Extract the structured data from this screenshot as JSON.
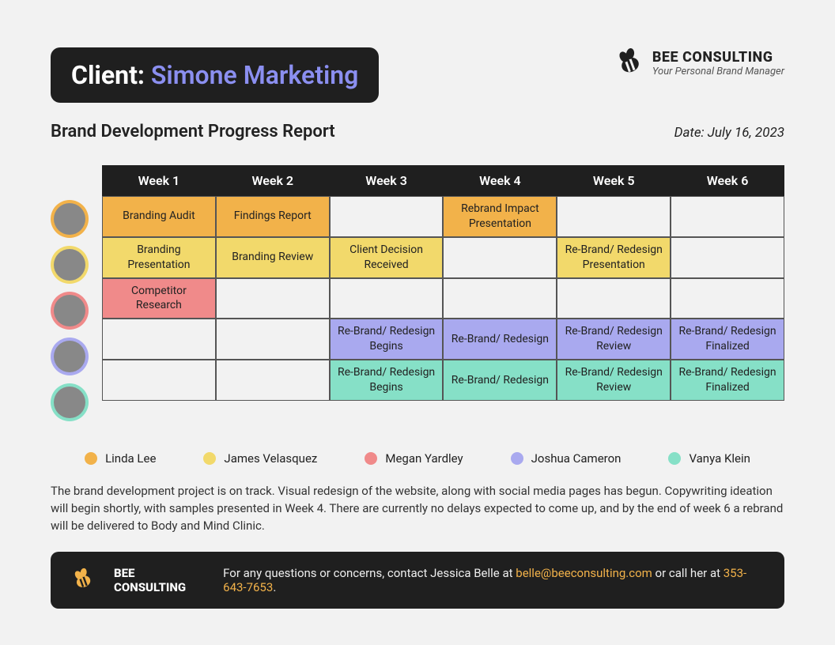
{
  "colors": {
    "orange": "#f2b24a",
    "yellow": "#f2d96b",
    "pink": "#f08a8a",
    "purple": "#a9a9ef",
    "teal": "#86e0c7",
    "header_bg": "#1f1f1f"
  },
  "header": {
    "client_label": "Client:",
    "client_name": "Simone Marketing",
    "brand_name": "BEE CONSULTING",
    "brand_tag": "Your Personal Brand Manager"
  },
  "subhead": {
    "title": "Brand Development Progress Report",
    "date": "Date: July 16, 2023"
  },
  "weeks": [
    "Week 1",
    "Week 2",
    "Week 3",
    "Week 4",
    "Week 5",
    "Week 6"
  ],
  "rows": [
    {
      "color": "orange",
      "cells": [
        "Branding Audit",
        "Findings Report",
        "",
        "Rebrand Impact Presentation",
        "",
        ""
      ]
    },
    {
      "color": "yellow",
      "cells": [
        "Branding Presentation",
        "Branding Review",
        "Client Decision Received",
        "",
        "Re-Brand/ Redesign Presentation",
        ""
      ]
    },
    {
      "color": "pink",
      "cells": [
        "Competitor Research",
        "",
        "",
        "",
        "",
        ""
      ]
    },
    {
      "color": "purple",
      "cells": [
        "",
        "",
        "Re-Brand/ Redesign Begins",
        "Re-Brand/ Redesign",
        "Re-Brand/ Redesign Review",
        "Re-Brand/ Redesign Finalized"
      ]
    },
    {
      "color": "teal",
      "cells": [
        "",
        "",
        "Re-Brand/ Redesign Begins",
        "Re-Brand/ Redesign",
        "Re-Brand/ Redesign Review",
        "Re-Brand/ Redesign Finalized"
      ]
    }
  ],
  "legend": [
    {
      "color": "orange",
      "name": "Linda Lee"
    },
    {
      "color": "yellow",
      "name": "James Velasquez"
    },
    {
      "color": "pink",
      "name": "Megan Yardley"
    },
    {
      "color": "purple",
      "name": "Joshua Cameron"
    },
    {
      "color": "teal",
      "name": "Vanya Klein"
    }
  ],
  "summary": "The brand development project is on track. Visual redesign of the website, along with social media pages has begun. Copywriting ideation will begin shortly, with samples presented in Week 4. There are currently no delays expected to come up, and by the end of week 6 a rebrand will be delivered to Body and Mind Clinic.",
  "footer": {
    "brand": "BEE CONSULTING",
    "text1": "For any questions or concerns, contact Jessica Belle at ",
    "email": "belle@beeconsulting.com",
    "text2": " or call her at ",
    "phone": "353-643-7653",
    "text3": "."
  }
}
